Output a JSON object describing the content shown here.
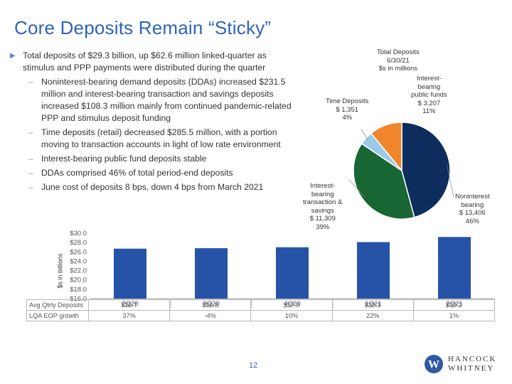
{
  "title": "Core Deposits Remain “Sticky”",
  "bullets": {
    "main": "Total deposits of $29.3 billion, up $62.6 million linked-quarter as stimulus and PPP payments were distributed during the quarter",
    "subs": [
      "Noninterest-bearing demand deposits (DDAs) increased $231.5 million and interest-bearing transaction and savings deposits increased $108.3 million mainly from continued pandemic-related PPP and stimulus deposit funding",
      "Time deposits (retail) decreased $285.5 million, with a portion moving to transaction accounts in light of low rate environment",
      "Interest-bearing public fund deposits stable",
      "DDAs comprised 46% of total period-end deposits",
      "June cost of deposits 8 bps, down 4 bps from March 2021"
    ]
  },
  "pie": {
    "title_lines": [
      "Total Deposits",
      "6/30/21",
      "$s in millions"
    ],
    "slices": [
      {
        "label_lines": [
          "Noninterest",
          "bearing",
          "$ 13,406",
          "46%"
        ],
        "value": 13406,
        "color": "#0d2d5e"
      },
      {
        "label_lines": [
          "Interest-",
          "bearing",
          "transaction &",
          "savings",
          "$ 11,309",
          "39%"
        ],
        "value": 11309,
        "color": "#176634"
      },
      {
        "label_lines": [
          "Time Deposits",
          "$ 1,351",
          "4%"
        ],
        "value": 1351,
        "color": "#9dc9e8"
      },
      {
        "label_lines": [
          "Interest-",
          "bearing",
          "public funds",
          "$ 3,207",
          "11%"
        ],
        "value": 3207,
        "color": "#f0852d"
      }
    ]
  },
  "chart_data": {
    "type": "bar",
    "categories": [
      "2Q20",
      "3Q20",
      "4Q20",
      "1Q21",
      "2Q21"
    ],
    "values": [
      26.7,
      26.8,
      27.0,
      28.1,
      29.2
    ],
    "ylabel": "$s in billions",
    "ylim": [
      16.0,
      30.0
    ],
    "yticks": [
      "$30.0",
      "$28.0",
      "$26.0",
      "$24.0",
      "$22.0",
      "$20.0",
      "$18.0",
      "$16.0"
    ],
    "bar_color": "#2653a8"
  },
  "table": {
    "rows": [
      {
        "label": "Avg Qtrly Deposits",
        "values": [
          "$26.7",
          "$26.8",
          "$27.0",
          "$28.1",
          "$29.2"
        ]
      },
      {
        "label": "LQA EOP growth",
        "values": [
          "37%",
          "-4%",
          "10%",
          "22%",
          "1%"
        ]
      }
    ]
  },
  "page_number": "12",
  "logo": {
    "line1": "HANCOCK",
    "line2": "WHITNEY",
    "mark": "W",
    "color": "#2d5aa0"
  }
}
